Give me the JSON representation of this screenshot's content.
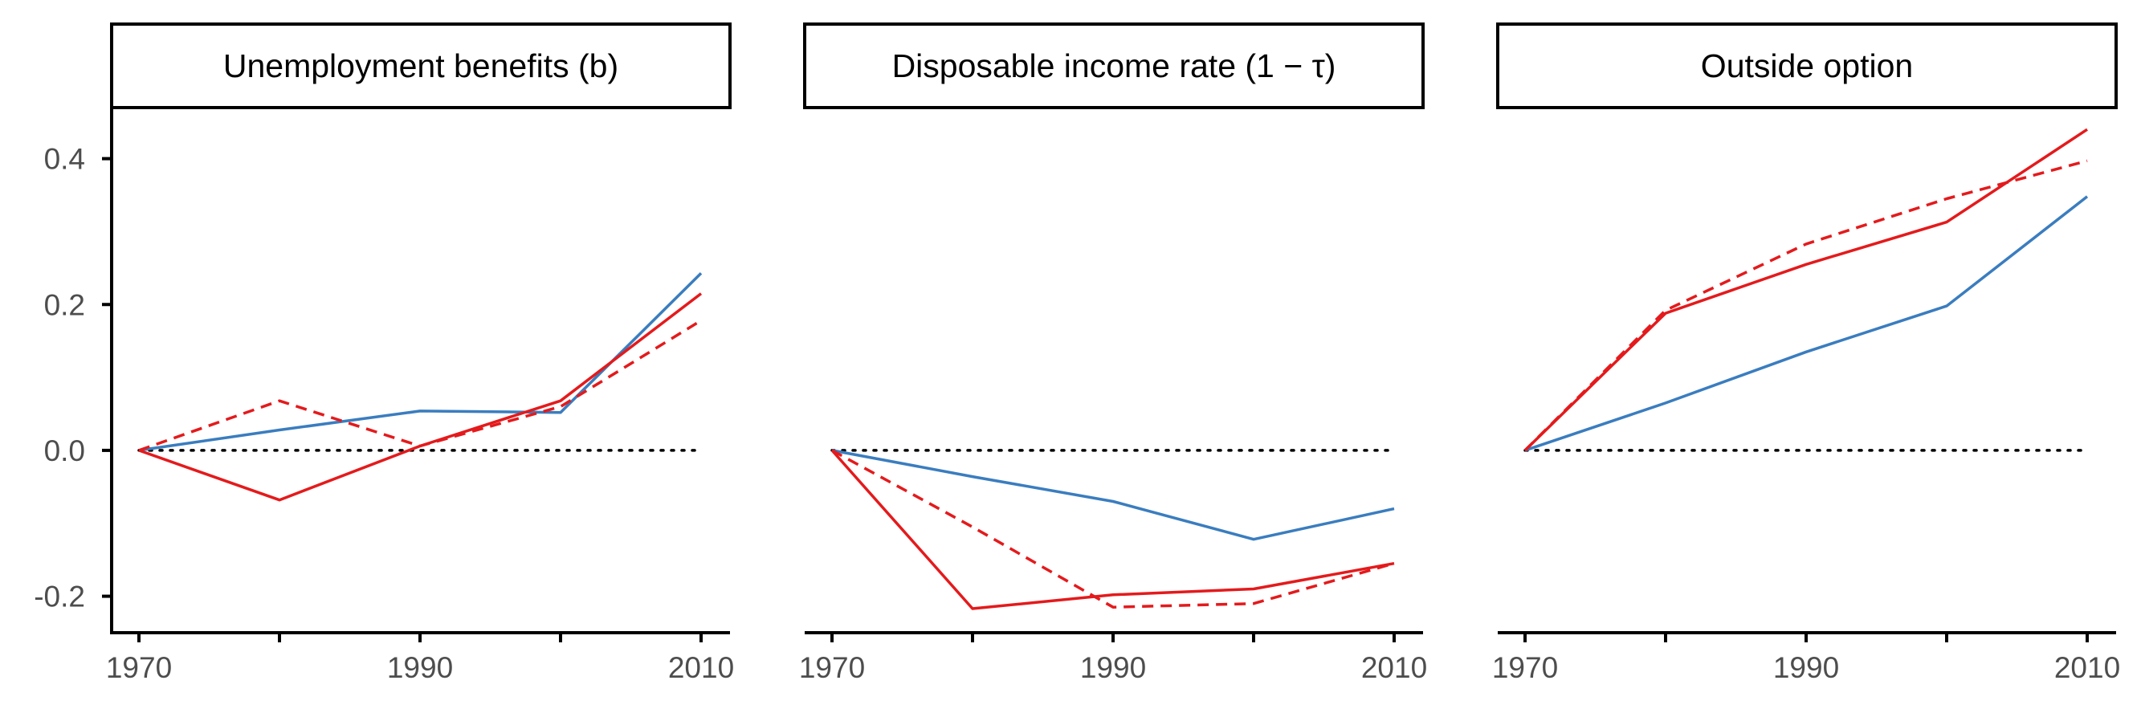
{
  "colors": {
    "blue": "#3a7dbf",
    "red": "#e41a1c",
    "axis": "#000000",
    "tick_text": "#4d4d4d",
    "zero_line": "#000000"
  },
  "chart_data": {
    "type": "line",
    "layout": "facets",
    "x_ticks": [
      1970,
      1990,
      2010
    ],
    "x_minor_ticks": [
      1980,
      2000
    ],
    "xlim": [
      1970,
      2010
    ],
    "ylim": [
      -0.25,
      0.47
    ],
    "y_ticks": [
      -0.2,
      0.0,
      0.2,
      0.4
    ],
    "y_tick_labels": [
      "-0.2",
      "0.0",
      "0.2",
      "0.4"
    ],
    "reference_line": {
      "y": 0.0,
      "style": "dotted"
    },
    "grid": false,
    "legend": "none",
    "panels": [
      {
        "title": "Unemployment benefits (b)",
        "series": [
          {
            "color": "blue",
            "style": "solid",
            "x": [
              1970,
              1980,
              1990,
              2000,
              2010
            ],
            "y": [
              0.0,
              0.028,
              0.054,
              0.052,
              0.243
            ]
          },
          {
            "color": "red",
            "style": "solid",
            "x": [
              1970,
              1980,
              1990,
              2000,
              2010
            ],
            "y": [
              0.0,
              -0.068,
              0.006,
              0.068,
              0.215
            ]
          },
          {
            "color": "red",
            "style": "dashed",
            "x": [
              1970,
              1980,
              1990,
              2000,
              2010
            ],
            "y": [
              0.0,
              0.068,
              0.006,
              0.06,
              0.178
            ]
          }
        ]
      },
      {
        "title": "Disposable income rate (1 − τ)",
        "series": [
          {
            "color": "blue",
            "style": "solid",
            "x": [
              1970,
              1980,
              1990,
              2000,
              2010
            ],
            "y": [
              0.0,
              -0.036,
              -0.07,
              -0.122,
              -0.08
            ]
          },
          {
            "color": "red",
            "style": "solid",
            "x": [
              1970,
              1980,
              1990,
              2000,
              2010
            ],
            "y": [
              0.0,
              -0.217,
              -0.198,
              -0.19,
              -0.155
            ]
          },
          {
            "color": "red",
            "style": "dashed",
            "x": [
              1970,
              1980,
              1990,
              2000,
              2010
            ],
            "y": [
              0.0,
              -0.105,
              -0.215,
              -0.21,
              -0.155
            ]
          }
        ]
      },
      {
        "title": "Outside option",
        "series": [
          {
            "color": "blue",
            "style": "solid",
            "x": [
              1970,
              1980,
              1990,
              2000,
              2010
            ],
            "y": [
              0.0,
              0.065,
              0.135,
              0.198,
              0.348
            ]
          },
          {
            "color": "red",
            "style": "solid",
            "x": [
              1970,
              1980,
              1990,
              2000,
              2010
            ],
            "y": [
              0.0,
              0.188,
              0.255,
              0.313,
              0.44
            ]
          },
          {
            "color": "red",
            "style": "dashed",
            "x": [
              1970,
              1980,
              1990,
              2000,
              2010
            ],
            "y": [
              0.0,
              0.192,
              0.283,
              0.345,
              0.397
            ]
          }
        ]
      }
    ]
  }
}
